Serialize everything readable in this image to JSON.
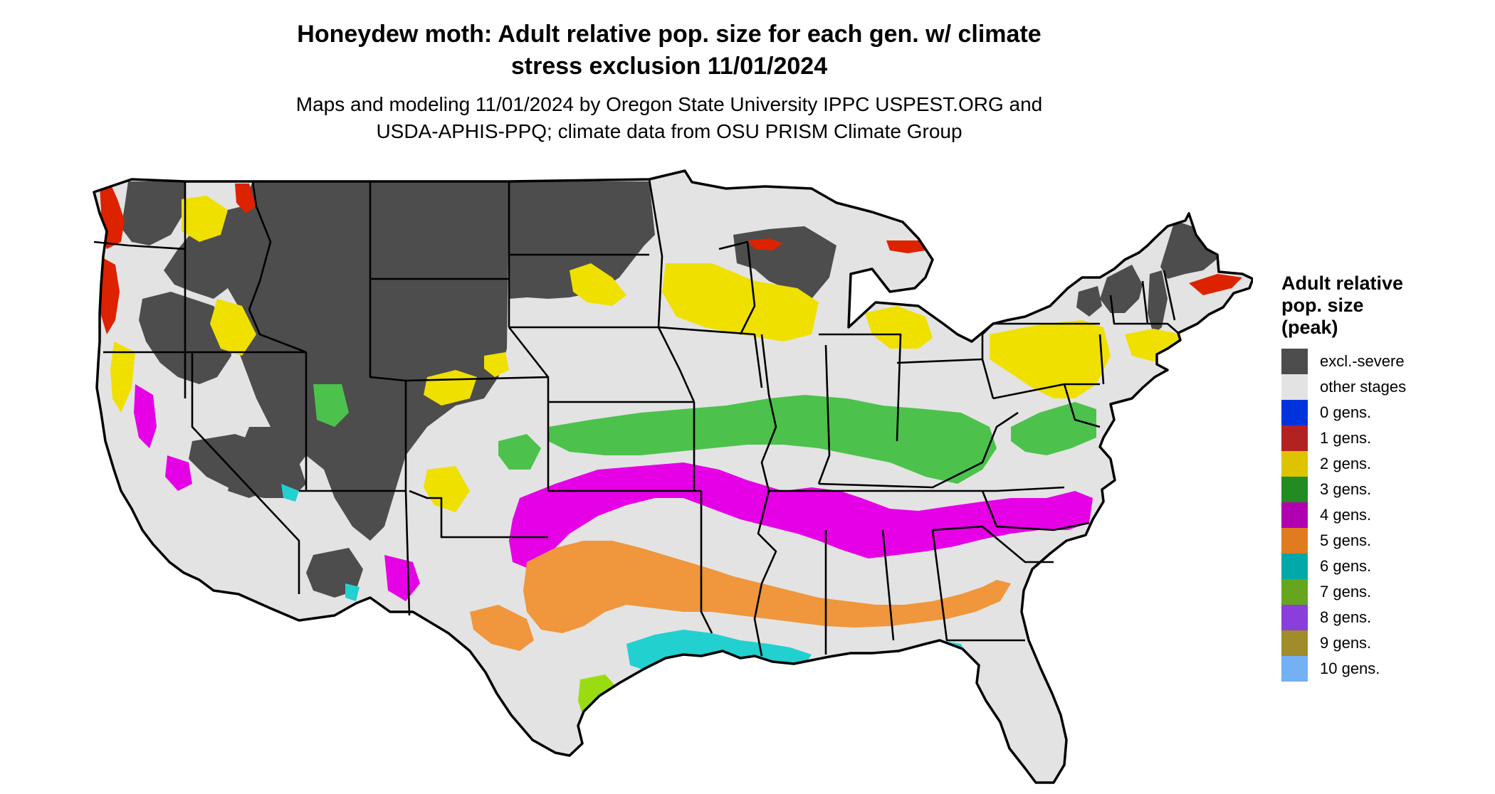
{
  "title": {
    "line1": "Honeydew moth: Adult relative pop. size for each gen. w/ climate",
    "line2": "stress exclusion 11/01/2024"
  },
  "subtitle": {
    "line1": "Maps and modeling 11/01/2024 by Oregon State University IPPC USPEST.ORG and",
    "line2": "USDA-APHIS-PPQ; climate data from OSU PRISM Climate Group"
  },
  "legend": {
    "title_lines": [
      "Adult relative",
      "pop. size",
      "(peak)"
    ],
    "items": [
      {
        "label": "excl.-severe",
        "color": "#4d4d4d"
      },
      {
        "label": "other stages",
        "color": "#e3e3e3"
      },
      {
        "label": "0 gens.",
        "color": "#0033dd"
      },
      {
        "label": "1 gens.",
        "color": "#b22222"
      },
      {
        "label": "2 gens.",
        "color": "#ddc300"
      },
      {
        "label": "3 gens.",
        "color": "#228b22"
      },
      {
        "label": "4 gens.",
        "color": "#b000b0"
      },
      {
        "label": "5 gens.",
        "color": "#e07b1f"
      },
      {
        "label": "6 gens.",
        "color": "#00a8a8"
      },
      {
        "label": "7 gens.",
        "color": "#66a61e"
      },
      {
        "label": "8 gens.",
        "color": "#8a3fdd"
      },
      {
        "label": "9 gens.",
        "color": "#a08c2a"
      },
      {
        "label": "10 gens.",
        "color": "#74b0f4"
      }
    ]
  },
  "map_colors": {
    "land": "#e3e3e3",
    "border": "#000000",
    "excluded": "#4d4d4d",
    "gen1": "#dd2200",
    "gen2": "#f0e000",
    "gen3": "#4cc24c",
    "gen4": "#e600e6",
    "gen5": "#f0963c",
    "gen6": "#22d0d0",
    "gen7": "#99dd11",
    "gen8": "#9955ee"
  }
}
